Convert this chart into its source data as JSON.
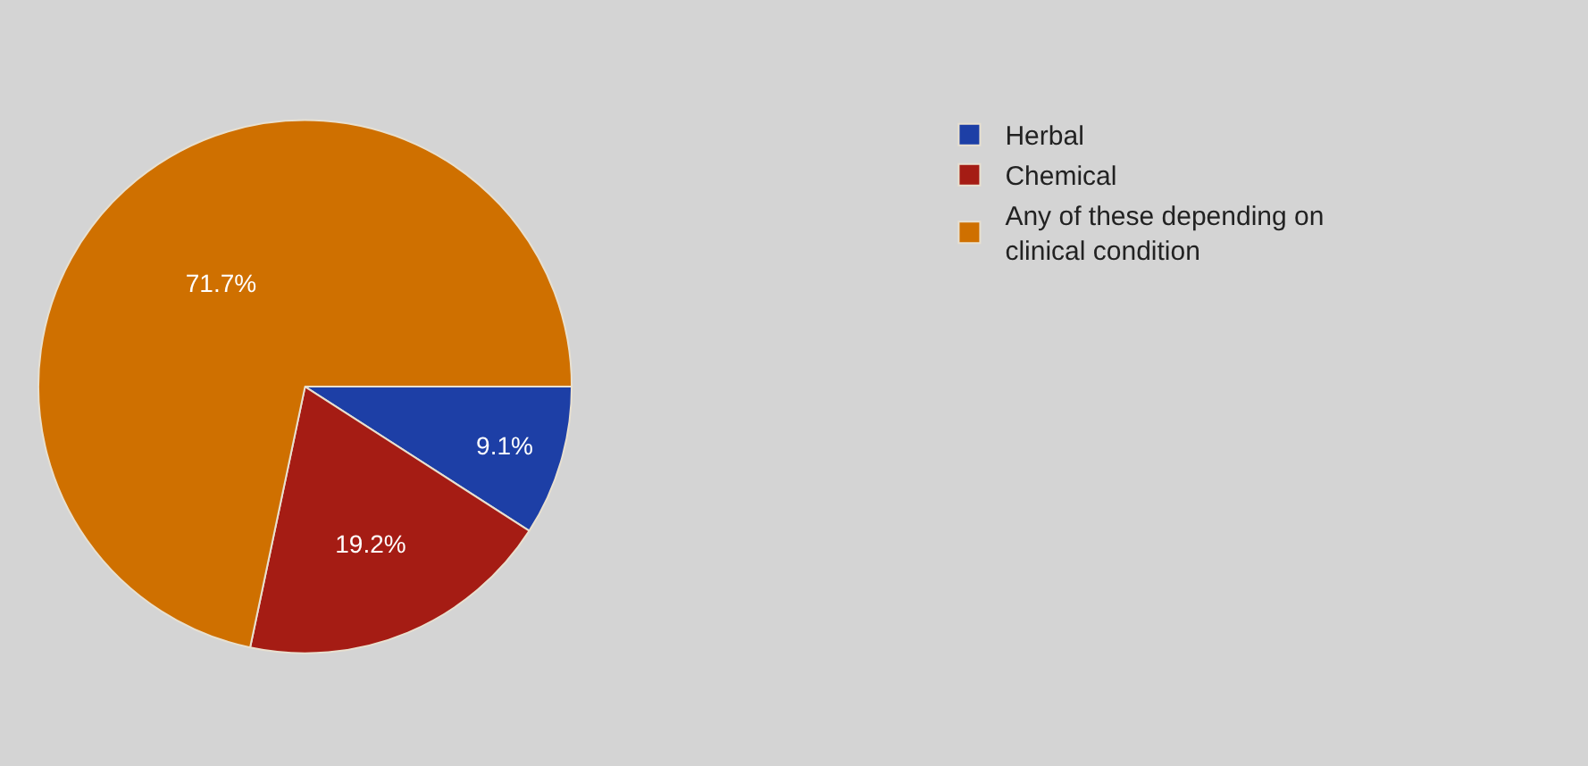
{
  "chart_data": {
    "type": "pie",
    "categories": [
      "Herbal",
      "Chemical",
      "Any of these depending on clinical condition"
    ],
    "values": [
      9.1,
      19.2,
      71.7
    ],
    "colors": [
      "#1d3fa6",
      "#a51c14",
      "#cf7000"
    ],
    "value_labels": [
      "9.1%",
      "19.2%",
      "71.7%"
    ],
    "legend": "top right"
  }
}
